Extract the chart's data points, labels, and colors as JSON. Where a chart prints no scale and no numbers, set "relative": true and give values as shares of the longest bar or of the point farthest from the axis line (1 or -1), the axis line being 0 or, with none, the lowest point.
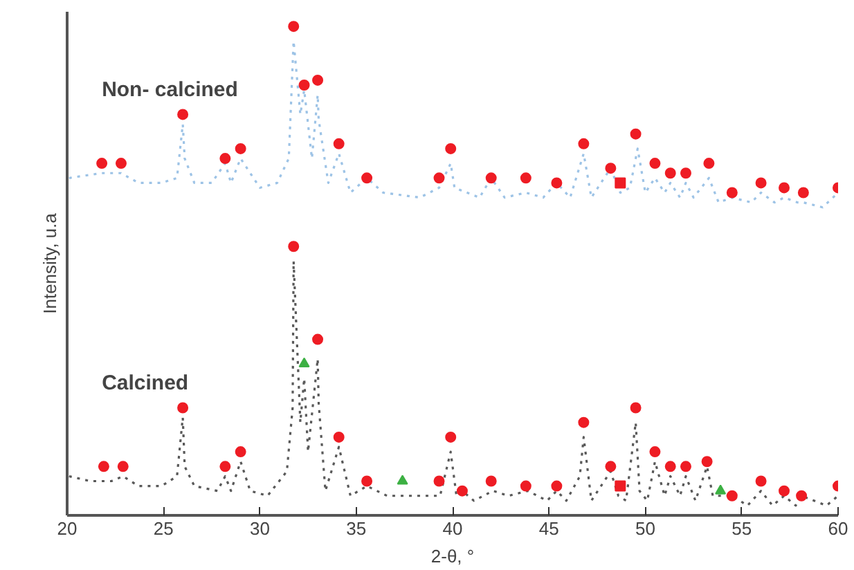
{
  "chart_data": {
    "type": "line",
    "relative": true,
    "xlabel": "2-θ, °",
    "ylabel": "Intensity, u.a",
    "xlim": [
      20,
      60
    ],
    "xticks": [
      20,
      25,
      30,
      35,
      40,
      45,
      50,
      55,
      60
    ],
    "grid": false,
    "tick_labels": "x",
    "line_style": "dotted",
    "series": [
      {
        "name": "Non- calcined",
        "color": "#9dc3e6",
        "x": [
          20.1,
          21.8,
          22.8,
          23.7,
          24.9,
          25.7,
          26.0,
          26.1,
          26.6,
          27.5,
          28.2,
          28.5,
          29.0,
          30.0,
          30.9,
          31.5,
          31.75,
          32.1,
          32.3,
          32.5,
          32.7,
          33.0,
          33.05,
          33.55,
          34.1,
          34.7,
          35.55,
          36.4,
          38.3,
          39.3,
          39.9,
          40.1,
          41.4,
          42.0,
          42.7,
          43.8,
          44.7,
          45.4,
          46.1,
          46.8,
          47.2,
          48.2,
          48.7,
          49.2,
          49.6,
          50.0,
          50.5,
          51.0,
          51.3,
          51.8,
          52.1,
          52.5,
          53.3,
          53.8,
          54.5,
          55.5,
          56.0,
          56.7,
          57.2,
          57.9,
          58.2,
          59.2,
          60.0
        ],
        "values": [
          0.69,
          0.7,
          0.7,
          0.68,
          0.68,
          0.69,
          0.8,
          0.73,
          0.68,
          0.68,
          0.72,
          0.68,
          0.73,
          0.67,
          0.68,
          0.73,
          0.97,
          0.82,
          0.87,
          0.8,
          0.73,
          0.86,
          0.81,
          0.68,
          0.74,
          0.66,
          0.69,
          0.66,
          0.65,
          0.67,
          0.72,
          0.67,
          0.65,
          0.69,
          0.65,
          0.66,
          0.65,
          0.68,
          0.65,
          0.74,
          0.65,
          0.71,
          0.66,
          0.67,
          0.75,
          0.66,
          0.69,
          0.66,
          0.68,
          0.65,
          0.68,
          0.65,
          0.69,
          0.64,
          0.65,
          0.64,
          0.66,
          0.64,
          0.65,
          0.64,
          0.64,
          0.63,
          0.66
        ]
      },
      {
        "name": "Calcined",
        "color": "#595959",
        "x": [
          20.1,
          21.2,
          22.3,
          22.9,
          23.7,
          24.9,
          25.7,
          26.0,
          26.1,
          26.6,
          27.8,
          28.2,
          28.5,
          29.0,
          29.5,
          30.4,
          31.4,
          31.7,
          31.75,
          32.1,
          32.3,
          32.5,
          33.0,
          33.05,
          33.4,
          34.1,
          34.7,
          35.55,
          36.6,
          38.8,
          39.35,
          39.9,
          40.2,
          40.5,
          41.1,
          42.1,
          42.9,
          43.9,
          44.9,
          45.4,
          45.9,
          46.6,
          46.8,
          47.2,
          48.2,
          48.6,
          49.0,
          49.5,
          49.7,
          50.1,
          50.5,
          51.0,
          51.3,
          51.8,
          52.1,
          52.6,
          53.2,
          53.5,
          54.5,
          55.3,
          56.0,
          56.6,
          57.2,
          57.8,
          58.1,
          59.4,
          60.0
        ],
        "values": [
          0.08,
          0.07,
          0.07,
          0.08,
          0.06,
          0.06,
          0.08,
          0.2,
          0.1,
          0.06,
          0.05,
          0.08,
          0.05,
          0.11,
          0.05,
          0.04,
          0.09,
          0.22,
          0.52,
          0.19,
          0.28,
          0.13,
          0.32,
          0.23,
          0.05,
          0.14,
          0.04,
          0.06,
          0.04,
          0.04,
          0.04,
          0.13,
          0.04,
          0.05,
          0.03,
          0.05,
          0.04,
          0.05,
          0.03,
          0.05,
          0.03,
          0.08,
          0.16,
          0.03,
          0.09,
          0.04,
          0.03,
          0.19,
          0.05,
          0.03,
          0.11,
          0.04,
          0.08,
          0.04,
          0.08,
          0.03,
          0.1,
          0.04,
          0.04,
          0.02,
          0.05,
          0.02,
          0.04,
          0.02,
          0.04,
          0.02,
          0.04
        ]
      },
      {
        "type": "scatter",
        "marker": "circle",
        "color": "#ee1c24",
        "x": [
          21.8,
          22.8,
          26.0,
          28.2,
          29.0,
          31.75,
          32.3,
          33.0,
          34.1,
          35.55,
          39.3,
          39.9,
          42.0,
          43.8,
          45.4,
          46.8,
          48.2,
          49.5,
          50.5,
          51.3,
          52.1,
          53.3,
          54.5,
          56.0,
          57.2,
          58.2,
          60.0
        ],
        "values": [
          0.72,
          0.72,
          0.82,
          0.73,
          0.75,
          1.0,
          0.88,
          0.89,
          0.76,
          0.69,
          0.69,
          0.75,
          0.69,
          0.69,
          0.68,
          0.76,
          0.71,
          0.78,
          0.72,
          0.7,
          0.7,
          0.72,
          0.66,
          0.68,
          0.67,
          0.66,
          0.67
        ]
      },
      {
        "type": "scatter",
        "marker": "circle",
        "color": "#ee1c24",
        "x": [
          21.9,
          22.9,
          26.0,
          28.2,
          29.0,
          31.75,
          33.0,
          34.1,
          35.55,
          39.3,
          39.9,
          40.5,
          42.0,
          43.8,
          45.4,
          46.8,
          48.2,
          49.5,
          50.5,
          51.3,
          52.1,
          53.2,
          54.5,
          56.0,
          57.2,
          58.1,
          60.0
        ],
        "values": [
          0.1,
          0.1,
          0.22,
          0.1,
          0.13,
          0.55,
          0.36,
          0.16,
          0.07,
          0.07,
          0.16,
          0.05,
          0.07,
          0.06,
          0.06,
          0.19,
          0.1,
          0.22,
          0.13,
          0.1,
          0.1,
          0.11,
          0.04,
          0.07,
          0.05,
          0.04,
          0.06
        ]
      },
      {
        "type": "scatter",
        "marker": "square",
        "color": "#ee1c24",
        "x": [
          48.7,
          48.7
        ],
        "values": [
          0.68,
          0.06
        ]
      },
      {
        "type": "scatter",
        "marker": "triangle",
        "color": "#3cb043",
        "x": [
          32.3,
          37.4,
          53.9
        ],
        "values": [
          0.31,
          0.07,
          0.05
        ]
      }
    ]
  }
}
